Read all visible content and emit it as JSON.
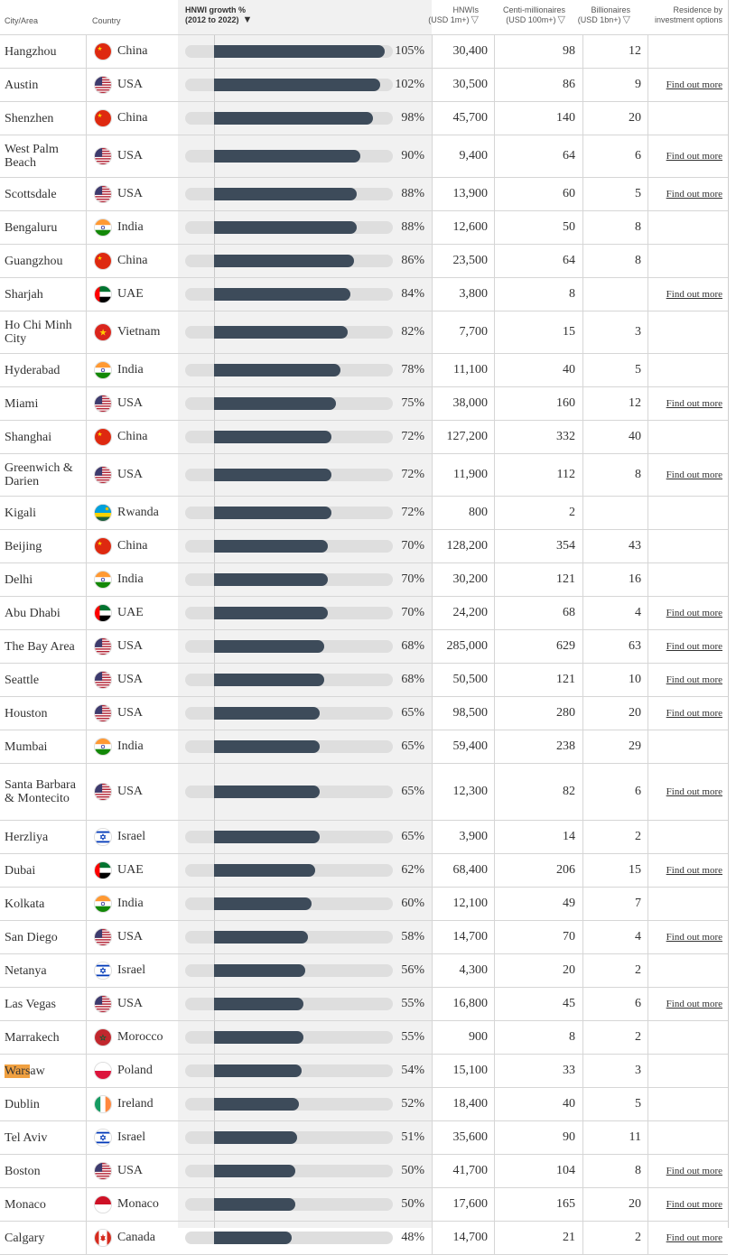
{
  "header": {
    "city": "City/Area",
    "country": "Country",
    "growth_line1": "HNWI growth %",
    "growth_line2": "(2012 to 2022)",
    "hnwi_line1": "HNWIs",
    "hnwi_line2": "(USD 1m+)",
    "centi_line1": "Centi-millionaires",
    "centi_line2": "(USD 100m+)",
    "bill_line1": "Billionaires",
    "bill_line2": "(USD 1bn+)",
    "res_line1": "Residence by",
    "res_line2": "investment options"
  },
  "link_label": "Find out more",
  "rows": [
    {
      "city": "Hangzhou",
      "country": "China",
      "flag": "china",
      "growth": 105,
      "growth_label": "105%",
      "hnwi": "30,400",
      "centi": "98",
      "bill": "12",
      "link": false
    },
    {
      "city": "Austin",
      "country": "USA",
      "flag": "usa",
      "growth": 102,
      "growth_label": "102%",
      "hnwi": "30,500",
      "centi": "86",
      "bill": "9",
      "link": true
    },
    {
      "city": "Shenzhen",
      "country": "China",
      "flag": "china",
      "growth": 98,
      "growth_label": "98%",
      "hnwi": "45,700",
      "centi": "140",
      "bill": "20",
      "link": false
    },
    {
      "city": "West Palm Beach",
      "country": "USA",
      "flag": "usa",
      "growth": 90,
      "growth_label": "90%",
      "hnwi": "9,400",
      "centi": "64",
      "bill": "6",
      "link": true
    },
    {
      "city": "Scottsdale",
      "country": "USA",
      "flag": "usa",
      "growth": 88,
      "growth_label": "88%",
      "hnwi": "13,900",
      "centi": "60",
      "bill": "5",
      "link": true
    },
    {
      "city": "Bengaluru",
      "country": "India",
      "flag": "india",
      "growth": 88,
      "growth_label": "88%",
      "hnwi": "12,600",
      "centi": "50",
      "bill": "8",
      "link": false
    },
    {
      "city": "Guangzhou",
      "country": "China",
      "flag": "china",
      "growth": 86,
      "growth_label": "86%",
      "hnwi": "23,500",
      "centi": "64",
      "bill": "8",
      "link": false
    },
    {
      "city": "Sharjah",
      "country": "UAE",
      "flag": "uae",
      "growth": 84,
      "growth_label": "84%",
      "hnwi": "3,800",
      "centi": "8",
      "bill": "",
      "link": true
    },
    {
      "city": "Ho Chi Minh City",
      "country": "Vietnam",
      "flag": "vietnam",
      "growth": 82,
      "growth_label": "82%",
      "hnwi": "7,700",
      "centi": "15",
      "bill": "3",
      "link": false
    },
    {
      "city": "Hyderabad",
      "country": "India",
      "flag": "india",
      "growth": 78,
      "growth_label": "78%",
      "hnwi": "11,100",
      "centi": "40",
      "bill": "5",
      "link": false
    },
    {
      "city": "Miami",
      "country": "USA",
      "flag": "usa",
      "growth": 75,
      "growth_label": "75%",
      "hnwi": "38,000",
      "centi": "160",
      "bill": "12",
      "link": true
    },
    {
      "city": "Shanghai",
      "country": "China",
      "flag": "china",
      "growth": 72,
      "growth_label": "72%",
      "hnwi": "127,200",
      "centi": "332",
      "bill": "40",
      "link": false
    },
    {
      "city": "Greenwich & Darien",
      "country": "USA",
      "flag": "usa",
      "growth": 72,
      "growth_label": "72%",
      "hnwi": "11,900",
      "centi": "112",
      "bill": "8",
      "link": true
    },
    {
      "city": "Kigali",
      "country": "Rwanda",
      "flag": "rwanda",
      "growth": 72,
      "growth_label": "72%",
      "hnwi": "800",
      "centi": "2",
      "bill": "",
      "link": false
    },
    {
      "city": "Beijing",
      "country": "China",
      "flag": "china",
      "growth": 70,
      "growth_label": "70%",
      "hnwi": "128,200",
      "centi": "354",
      "bill": "43",
      "link": false
    },
    {
      "city": "Delhi",
      "country": "India",
      "flag": "india",
      "growth": 70,
      "growth_label": "70%",
      "hnwi": "30,200",
      "centi": "121",
      "bill": "16",
      "link": false
    },
    {
      "city": "Abu Dhabi",
      "country": "UAE",
      "flag": "uae",
      "growth": 70,
      "growth_label": "70%",
      "hnwi": "24,200",
      "centi": "68",
      "bill": "4",
      "link": true
    },
    {
      "city": "The Bay Area",
      "country": "USA",
      "flag": "usa",
      "growth": 68,
      "growth_label": "68%",
      "hnwi": "285,000",
      "centi": "629",
      "bill": "63",
      "link": true
    },
    {
      "city": "Seattle",
      "country": "USA",
      "flag": "usa",
      "growth": 68,
      "growth_label": "68%",
      "hnwi": "50,500",
      "centi": "121",
      "bill": "10",
      "link": true
    },
    {
      "city": "Houston",
      "country": "USA",
      "flag": "usa",
      "growth": 65,
      "growth_label": "65%",
      "hnwi": "98,500",
      "centi": "280",
      "bill": "20",
      "link": true
    },
    {
      "city": "Mumbai",
      "country": "India",
      "flag": "india",
      "growth": 65,
      "growth_label": "65%",
      "hnwi": "59,400",
      "centi": "238",
      "bill": "29",
      "link": false
    },
    {
      "city": "Santa Barbara & Montecito",
      "country": "USA",
      "flag": "usa",
      "growth": 65,
      "growth_label": "65%",
      "hnwi": "12,300",
      "centi": "82",
      "bill": "6",
      "link": true
    },
    {
      "city": "Herzliya",
      "country": "Israel",
      "flag": "israel",
      "growth": 65,
      "growth_label": "65%",
      "hnwi": "3,900",
      "centi": "14",
      "bill": "2",
      "link": false
    },
    {
      "city": "Dubai",
      "country": "UAE",
      "flag": "uae",
      "growth": 62,
      "growth_label": "62%",
      "hnwi": "68,400",
      "centi": "206",
      "bill": "15",
      "link": true
    },
    {
      "city": "Kolkata",
      "country": "India",
      "flag": "india",
      "growth": 60,
      "growth_label": "60%",
      "hnwi": "12,100",
      "centi": "49",
      "bill": "7",
      "link": false
    },
    {
      "city": "San Diego",
      "country": "USA",
      "flag": "usa",
      "growth": 58,
      "growth_label": "58%",
      "hnwi": "14,700",
      "centi": "70",
      "bill": "4",
      "link": true
    },
    {
      "city": "Netanya",
      "country": "Israel",
      "flag": "israel",
      "growth": 56,
      "growth_label": "56%",
      "hnwi": "4,300",
      "centi": "20",
      "bill": "2",
      "link": false
    },
    {
      "city": "Las Vegas",
      "country": "USA",
      "flag": "usa",
      "growth": 55,
      "growth_label": "55%",
      "hnwi": "16,800",
      "centi": "45",
      "bill": "6",
      "link": true
    },
    {
      "city": "Marrakech",
      "country": "Morocco",
      "flag": "morocco",
      "growth": 55,
      "growth_label": "55%",
      "hnwi": "900",
      "centi": "8",
      "bill": "2",
      "link": false
    },
    {
      "city": "Warsaw",
      "country": "Poland",
      "flag": "poland",
      "growth": 54,
      "growth_label": "54%",
      "hnwi": "15,100",
      "centi": "33",
      "bill": "3",
      "link": false,
      "highlight": "Wars"
    },
    {
      "city": "Dublin",
      "country": "Ireland",
      "flag": "ireland",
      "growth": 52,
      "growth_label": "52%",
      "hnwi": "18,400",
      "centi": "40",
      "bill": "5",
      "link": false
    },
    {
      "city": "Tel Aviv",
      "country": "Israel",
      "flag": "israel",
      "growth": 51,
      "growth_label": "51%",
      "hnwi": "35,600",
      "centi": "90",
      "bill": "11",
      "link": false
    },
    {
      "city": "Boston",
      "country": "USA",
      "flag": "usa",
      "growth": 50,
      "growth_label": "50%",
      "hnwi": "41,700",
      "centi": "104",
      "bill": "8",
      "link": true
    },
    {
      "city": "Monaco",
      "country": "Monaco",
      "flag": "monaco",
      "growth": 50,
      "growth_label": "50%",
      "hnwi": "17,600",
      "centi": "165",
      "bill": "20",
      "link": true
    },
    {
      "city": "Calgary",
      "country": "Canada",
      "flag": "canada",
      "growth": 48,
      "growth_label": "48%",
      "hnwi": "14,700",
      "centi": "21",
      "bill": "2",
      "link": true
    }
  ]
}
